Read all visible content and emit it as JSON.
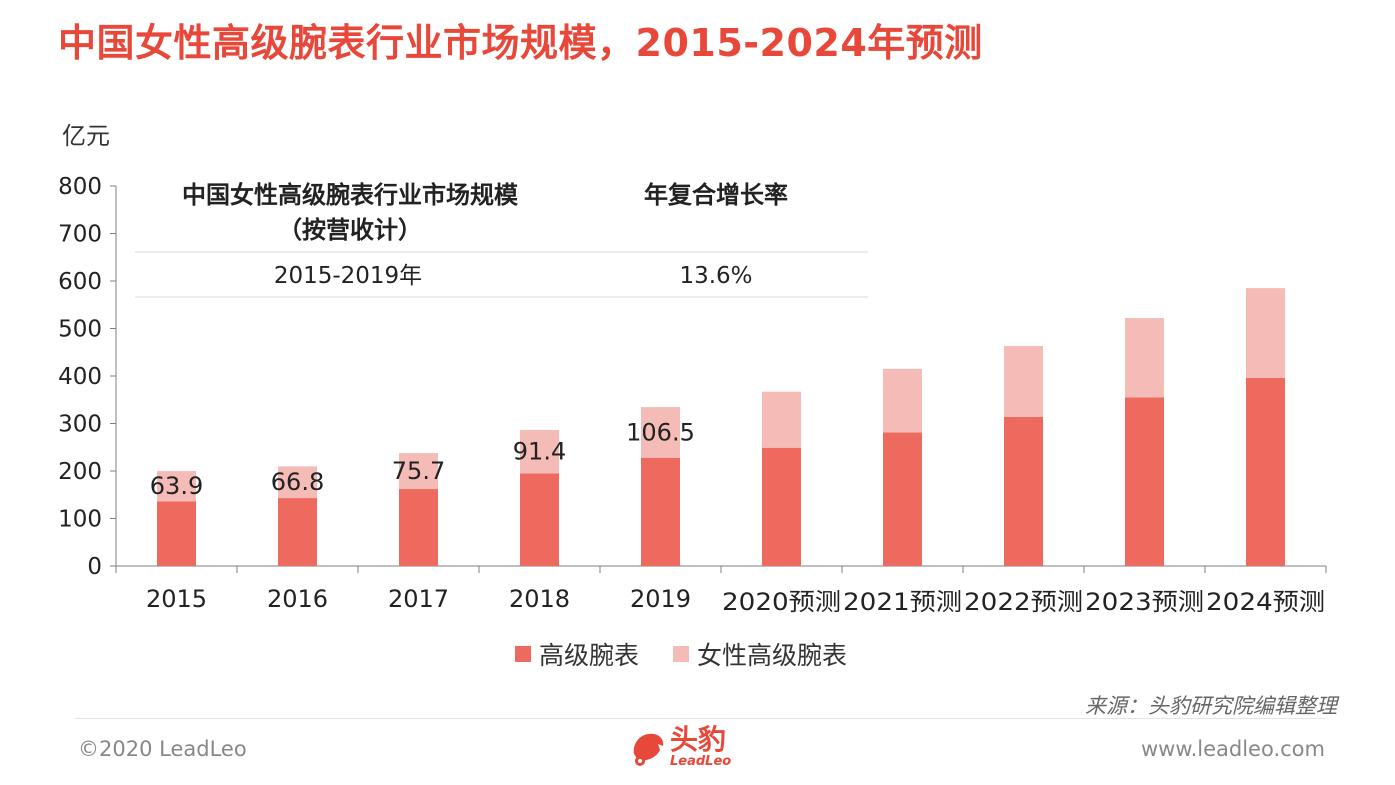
{
  "title": "中国女性高级腕表行业市场规模，2015-2024年预测",
  "unit": "亿元",
  "colors": {
    "accent": "#e8483a",
    "series1": "#ee6a5f",
    "series2": "#f5bbb6"
  },
  "table": {
    "header_left_line1": "中国女性高级腕表行业市场规模",
    "header_left_line2": "（按营收计）",
    "header_right": "年复合增长率",
    "period": "2015-2019年",
    "cagr": "13.6%"
  },
  "chart_data": {
    "type": "bar",
    "stacked": true,
    "categories": [
      "2015",
      "2016",
      "2017",
      "2018",
      "2019",
      "2020预测",
      "2021预测",
      "2022预测",
      "2023预测",
      "2024预测"
    ],
    "series": [
      {
        "name": "高级腕表",
        "values": [
          136,
          143,
          162,
          195,
          228,
          249,
          281,
          314,
          355,
          396
        ]
      },
      {
        "name": "女性高级腕表",
        "values": [
          63.9,
          66.8,
          75.7,
          91.4,
          106.5,
          118,
          134,
          149,
          167,
          189
        ]
      }
    ],
    "data_labels": [
      "63.9",
      "66.8",
      "75.7",
      "91.4",
      "106.5",
      "",
      "",
      "",
      "",
      ""
    ],
    "ylim": [
      0,
      800
    ],
    "yticks": [
      0,
      100,
      200,
      300,
      400,
      500,
      600,
      700,
      800
    ],
    "ylabel": "亿元",
    "xlabel": "",
    "legend_position": "bottom",
    "grid": false
  },
  "legend": [
    "高级腕表",
    "女性高级腕表"
  ],
  "source": "来源：头豹研究院编辑整理",
  "footer": {
    "copyright": "©2020 LeadLeo",
    "logo_text": "头豹",
    "logo_sub": "LeadLeo",
    "website": "www.leadleo.com"
  }
}
